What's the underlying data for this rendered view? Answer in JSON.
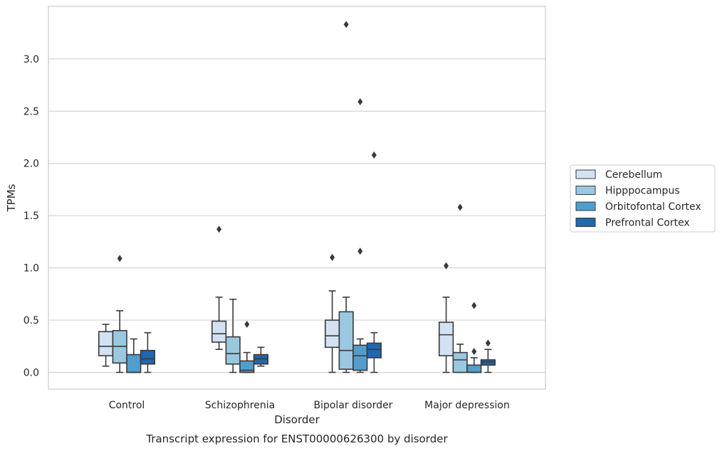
{
  "chart_data": {
    "type": "box",
    "title": "",
    "caption": "Transcript expression for ENST00000626300 by disorder",
    "xlabel": "Disorder",
    "ylabel": "TPMs",
    "ylim": [
      -0.16,
      3.5
    ],
    "yticks": [
      0.0,
      0.5,
      1.0,
      1.5,
      2.0,
      2.5,
      3.0
    ],
    "ytick_labels": [
      "0.0",
      "0.5",
      "1.0",
      "1.5",
      "2.0",
      "2.5",
      "3.0"
    ],
    "grid": "horizontal",
    "legend_position": "right-center",
    "categories": [
      "Control",
      "Schizophrenia",
      "Bipolar disorder",
      "Major depression"
    ],
    "colors": [
      "#d2e2f2",
      "#9ac8e0",
      "#529dcc",
      "#2266ac"
    ],
    "series": [
      {
        "name": "Cerebellum",
        "stats": [
          {
            "whislo": 0.06,
            "q1": 0.16,
            "med": 0.25,
            "q3": 0.39,
            "whishi": 0.46,
            "fliers": []
          },
          {
            "whislo": 0.22,
            "q1": 0.29,
            "med": 0.37,
            "q3": 0.49,
            "whishi": 0.72,
            "fliers": [
              1.37
            ]
          },
          {
            "whislo": 0.0,
            "q1": 0.24,
            "med": 0.35,
            "q3": 0.5,
            "whishi": 0.78,
            "fliers": [
              1.1
            ]
          },
          {
            "whislo": 0.0,
            "q1": 0.16,
            "med": 0.36,
            "q3": 0.48,
            "whishi": 0.72,
            "fliers": [
              1.02
            ]
          }
        ]
      },
      {
        "name": "Hipppocampus",
        "stats": [
          {
            "whislo": 0.0,
            "q1": 0.09,
            "med": 0.25,
            "q3": 0.4,
            "whishi": 0.59,
            "fliers": [
              1.09
            ]
          },
          {
            "whislo": 0.0,
            "q1": 0.08,
            "med": 0.18,
            "q3": 0.34,
            "whishi": 0.7,
            "fliers": []
          },
          {
            "whislo": 0.0,
            "q1": 0.03,
            "med": 0.21,
            "q3": 0.58,
            "whishi": 0.72,
            "fliers": [
              3.33
            ]
          },
          {
            "whislo": 0.0,
            "q1": 0.0,
            "med": 0.12,
            "q3": 0.19,
            "whishi": 0.27,
            "fliers": [
              1.58
            ]
          }
        ]
      },
      {
        "name": "Orbitofontal Cortex",
        "stats": [
          {
            "whislo": 0.0,
            "q1": 0.0,
            "med": 0.0,
            "q3": 0.17,
            "whishi": 0.32,
            "fliers": []
          },
          {
            "whislo": 0.0,
            "q1": 0.0,
            "med": 0.02,
            "q3": 0.11,
            "whishi": 0.19,
            "fliers": [
              0.46
            ]
          },
          {
            "whislo": 0.0,
            "q1": 0.02,
            "med": 0.16,
            "q3": 0.26,
            "whishi": 0.32,
            "fliers": [
              2.59,
              1.16
            ]
          },
          {
            "whislo": 0.0,
            "q1": 0.0,
            "med": 0.0,
            "q3": 0.07,
            "whishi": 0.14,
            "fliers": [
              0.64,
              0.2
            ]
          }
        ]
      },
      {
        "name": "Prefrontal Cortex",
        "stats": [
          {
            "whislo": 0.0,
            "q1": 0.08,
            "med": 0.13,
            "q3": 0.21,
            "whishi": 0.38,
            "fliers": []
          },
          {
            "whislo": 0.06,
            "q1": 0.08,
            "med": 0.13,
            "q3": 0.17,
            "whishi": 0.24,
            "fliers": []
          },
          {
            "whislo": 0.0,
            "q1": 0.14,
            "med": 0.22,
            "q3": 0.28,
            "whishi": 0.38,
            "fliers": [
              2.08
            ]
          },
          {
            "whislo": 0.0,
            "q1": 0.07,
            "med": 0.1,
            "q3": 0.12,
            "whishi": 0.22,
            "fliers": [
              0.28
            ]
          }
        ]
      }
    ]
  }
}
